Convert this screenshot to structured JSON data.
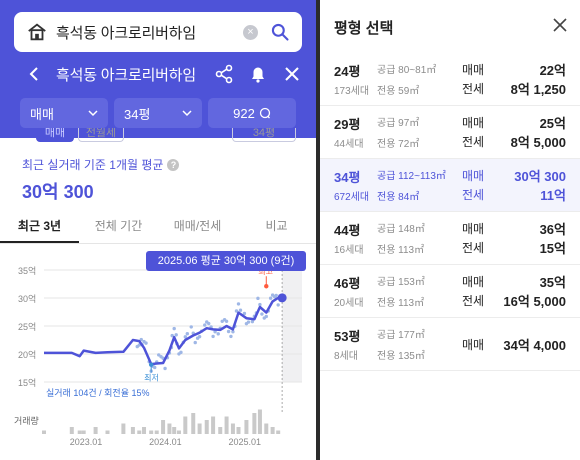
{
  "app": {
    "search_text": "흑석동 아크로리버하임",
    "nav_title": "흑석동 아크로리버하임"
  },
  "filters": {
    "trade_type": "매매",
    "size": "34평",
    "count": "922"
  },
  "subtabs": [
    {
      "label": "매매"
    },
    {
      "label": "전월세"
    },
    {
      "label": "34평"
    }
  ],
  "summary": {
    "avg_label": "최근 실거래 기준 1개월 평균",
    "avg_value": "30억 300"
  },
  "period_tabs": [
    {
      "label": "최근 3년",
      "active": true
    },
    {
      "label": "전체 기간",
      "active": false
    },
    {
      "label": "매매/전세",
      "active": false
    },
    {
      "label": "비교",
      "active": false
    }
  ],
  "tooltip": "2025.06 평균 30억 300 (9건)",
  "chart_data": {
    "type": "line",
    "y_ticks": [
      "15억",
      "20억",
      "25억",
      "30억",
      "35억"
    ],
    "ylim": [
      15,
      35
    ],
    "x_ticks": [
      "2023.01",
      "2024.01",
      "2025.01"
    ],
    "xlim": [
      2022.5,
      2025.75
    ],
    "x": [
      2022.5,
      2022.85,
      2022.95,
      2023.0,
      2023.15,
      2023.3,
      2023.5,
      2023.62,
      2023.7,
      2023.76,
      2023.85,
      2023.92,
      2024.0,
      2024.08,
      2024.14,
      2024.2,
      2024.28,
      2024.38,
      2024.46,
      2024.55,
      2024.63,
      2024.72,
      2024.8,
      2024.88,
      2024.95,
      2025.05,
      2025.15,
      2025.22,
      2025.3,
      2025.38,
      2025.45
    ],
    "y": [
      20.2,
      20.2,
      19.6,
      20.6,
      20.2,
      20.3,
      20.4,
      22.5,
      22.3,
      21.1,
      18.2,
      18.3,
      18.4,
      20.6,
      23.0,
      21.0,
      22.5,
      23.3,
      23.8,
      24.6,
      24.4,
      24.3,
      25.0,
      24.4,
      27.4,
      26.4,
      26.2,
      28.4,
      27.4,
      29.4,
      30.03
    ],
    "highlight": {
      "x": 2025.5,
      "y": 30.03,
      "label": "2025.06"
    },
    "high": {
      "label": "최고",
      "x": 2025.3,
      "y": 32.1
    },
    "low": {
      "label": "최저",
      "x": 2023.85,
      "y": 18.1
    },
    "footer": "실거래 104건 / 회전율 15%",
    "volume_label": "거래량",
    "volume": [
      1,
      2,
      1,
      1,
      2,
      1,
      3,
      2,
      1,
      2,
      1,
      1,
      4,
      3,
      2,
      1,
      5,
      6,
      3,
      4,
      5,
      2,
      5,
      3,
      2,
      4,
      6,
      7,
      3,
      2,
      1
    ],
    "series_color": "#4e53d8",
    "scatter_color": "#9fb7e6",
    "high_color": "#ff5a3d"
  },
  "sheet": {
    "title": "평형 선택",
    "rows": [
      {
        "pyeong": "24평",
        "households": "173세대",
        "supply": "공급 80~81㎡",
        "exclusive": "전용 59㎡",
        "k1": "매매",
        "v1": "22억",
        "k2": "전세",
        "v2": "8억 1,250",
        "selected": false
      },
      {
        "pyeong": "29평",
        "households": "44세대",
        "supply": "공급 97㎡",
        "exclusive": "전용 72㎡",
        "k1": "매매",
        "v1": "25억",
        "k2": "전세",
        "v2": "8억 5,000",
        "selected": false
      },
      {
        "pyeong": "34평",
        "households": "672세대",
        "supply": "공급 112~113㎡",
        "exclusive": "전용 84㎡",
        "k1": "매매",
        "v1": "30억 300",
        "k2": "전세",
        "v2": "11억",
        "selected": true
      },
      {
        "pyeong": "44평",
        "households": "16세대",
        "supply": "공급 148㎡",
        "exclusive": "전용 113㎡",
        "k1": "매매",
        "v1": "36억",
        "k2": "전세",
        "v2": "15억",
        "selected": false
      },
      {
        "pyeong": "46평",
        "households": "20세대",
        "supply": "공급 153㎡",
        "exclusive": "전용 113㎡",
        "k1": "매매",
        "v1": "35억",
        "k2": "전세",
        "v2": "16억 5,000",
        "selected": false
      },
      {
        "pyeong": "53평",
        "households": "8세대",
        "supply": "공급 177㎡",
        "exclusive": "전용 135㎡",
        "k1": "매매",
        "v1": "34억 4,000",
        "k2": "",
        "v2": "",
        "selected": false
      }
    ]
  },
  "colors": {
    "brand": "#4e53d8",
    "brand_light": "#6267df",
    "accent_red": "#ff5a3d"
  }
}
